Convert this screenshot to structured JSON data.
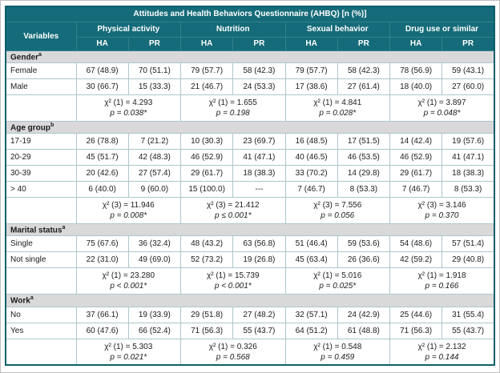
{
  "title": "Attitudes and Health Behaviors Questionnaire (AHBQ) [n (%)]",
  "colors": {
    "header_teal": "#156b79",
    "section_gray": "#d9d9d9",
    "table_border": "#0e5f6d"
  },
  "header": {
    "variables": "Variables",
    "groups": [
      "Physical activity",
      "Nutrition",
      "Sexual behavior",
      "Drug use or similar"
    ],
    "subcols": [
      "HA",
      "PR",
      "HA",
      "PR",
      "HA",
      "PR",
      "HA",
      "PR"
    ]
  },
  "sections": [
    {
      "name": "Gender",
      "sup": "a",
      "rows": [
        {
          "label": "Female",
          "cells": [
            "67 (48.9)",
            "70 (51.1)",
            "79 (57.7)",
            "58 (42.3)",
            "79 (57.7)",
            "58 (42.3)",
            "78 (56.9)",
            "59 (43.1)"
          ]
        },
        {
          "label": "Male",
          "cells": [
            "30 (66.7)",
            "15 (33.3)",
            "21 (46.7)",
            "24 (53.3)",
            "17 (38.6)",
            "27 (61.4)",
            "18 (40.0)",
            "27 (60.0)"
          ]
        }
      ],
      "stats": [
        {
          "chi": "χ² (1) = 4.293",
          "p": "p = 0.038*"
        },
        {
          "chi": "χ² (1) = 1.655",
          "p": "p = 0.198"
        },
        {
          "chi": "χ² (1) = 4.841",
          "p": "p = 0.028*"
        },
        {
          "chi": "χ² (1) = 3.897",
          "p": "p = 0.048*"
        }
      ]
    },
    {
      "name": "Age group",
      "sup": "b",
      "rows": [
        {
          "label": "17-19",
          "cells": [
            "26 (78.8)",
            "7 (21.2)",
            "10 (30.3)",
            "23 (69.7)",
            "16 (48.5)",
            "17 (51.5)",
            "14 (42.4)",
            "19 (57.6)"
          ]
        },
        {
          "label": "20-29",
          "cells": [
            "45 (51.7)",
            "42 (48.3)",
            "46 (52.9)",
            "41 (47.1)",
            "40 (46.5)",
            "46 (53.5)",
            "46 (52.9)",
            "41 (47.1)"
          ]
        },
        {
          "label": "30-39",
          "cells": [
            "20 (42.6)",
            "27 (57.4)",
            "29 (61.7)",
            "18 (38.3)",
            "33 (70.2)",
            "14 (29.8)",
            "29 (61.7)",
            "18 (38.3)"
          ]
        },
        {
          "label": "> 40",
          "cells": [
            "6 (40.0)",
            "9 (60.0)",
            "15 (100.0)",
            "---",
            "7 (46.7)",
            "8 (53.3)",
            "7 (46.7)",
            "8 (53.3)"
          ]
        }
      ],
      "stats": [
        {
          "chi": "χ² (3) = 11.946",
          "p": "p = 0.008*"
        },
        {
          "chi": "χ² (3) = 21.412",
          "p": "p ≤ 0.001*"
        },
        {
          "chi": "χ² (3) = 7.556",
          "p": "p = 0.056"
        },
        {
          "chi": "χ² (3) = 3.146",
          "p": "p = 0.370"
        }
      ]
    },
    {
      "name": "Marital status",
      "sup": "a",
      "rows": [
        {
          "label": "Single",
          "cells": [
            "75 (67.6)",
            "36 (32.4)",
            "48 (43.2)",
            "63 (56.8)",
            "51 (46.4)",
            "59 (53.6)",
            "54 (48.6)",
            "57 (51.4)"
          ]
        },
        {
          "label": "Not single",
          "cells": [
            "22 (31.0)",
            "49 (69.0)",
            "52 (73.2)",
            "19 (26.8)",
            "45 (63.4)",
            "26 (36.6)",
            "42 (59.2)",
            "29 (40.8)"
          ]
        }
      ],
      "stats": [
        {
          "chi": "χ² (1) = 23.280",
          "p": "p < 0.001*"
        },
        {
          "chi": "χ² (1) = 15.739",
          "p": "p < 0.001*"
        },
        {
          "chi": "χ² (1) = 5.016",
          "p": "p = 0.025*"
        },
        {
          "chi": "χ² (1) = 1.918",
          "p": "p = 0.166"
        }
      ]
    },
    {
      "name": "Work",
      "sup": "a",
      "rows": [
        {
          "label": "No",
          "cells": [
            "37 (66.1)",
            "19 (33.9)",
            "29 (51.8)",
            "27 (48.2)",
            "32 (57.1)",
            "24 (42.9)",
            "25 (44.6)",
            "31 (55.4)"
          ]
        },
        {
          "label": "Yes",
          "cells": [
            "60 (47.6)",
            "66 (52.4)",
            "71 (56.3)",
            "55 (43.7)",
            "64 (51.2)",
            "61 (48.8)",
            "71 (56.3)",
            "55 (43.7)"
          ]
        }
      ],
      "stats": [
        {
          "chi": "χ² (1) = 5.303",
          "p": "p = 0.021*"
        },
        {
          "chi": "χ² (1) = 0.326",
          "p": "p = 0.568"
        },
        {
          "chi": "χ² (1) = 0.548",
          "p": "p = 0.459"
        },
        {
          "chi": "χ² (1) = 2.132",
          "p": "p = 0.144"
        }
      ]
    }
  ]
}
